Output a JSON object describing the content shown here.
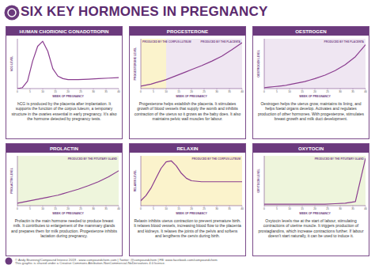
{
  "title": "SIX KEY HORMONES IN PREGNANCY",
  "footer": [
    "© Andy Brunning/Compound Interest 2019 - www.compoundchem.com | Twitter: @compoundchem | FB: www.facebook.com/compoundchem",
    "This graphic is shared under a Creative Commons Attribution-NonCommercial-NoDerivatives 4.0 licence."
  ],
  "chart_data": [
    {
      "type": "line",
      "title": "HUMAN CHORIONIC GONADOTROPIN",
      "y_label": "hCG LEVEL",
      "x_label": "WEEK OF PREGNANCY",
      "annotation": "hCG is produced by the placenta after implantation. It supports the function of the corpus luteum, a temporary structure in the ovaries essential in early pregnancy. It's also the hormone detected by pregnancy tests.",
      "x": [
        0,
        2,
        4,
        6,
        8,
        10,
        12,
        14,
        16,
        18,
        20,
        24,
        28,
        32,
        36,
        40
      ],
      "values": [
        0,
        2,
        15,
        55,
        85,
        95,
        75,
        40,
        25,
        20,
        18,
        18,
        19,
        20,
        21,
        22
      ],
      "color": "#8a3c8f",
      "xlim": [
        0,
        40
      ],
      "ylim": [
        0,
        100
      ],
      "xticks": [
        0,
        5,
        10,
        15,
        20,
        25,
        30,
        35,
        40
      ],
      "tick_labels": "x",
      "regions": []
    },
    {
      "type": "line",
      "title": "PROGESTERONE",
      "y_label": "PROGESTERONE LEVEL",
      "x_label": "WEEK OF PREGNANCY",
      "annotation": "Progesterone helps establish the placenta. It stimulates growth of blood vessels that supply the womb and inhibits contraction of the uterus so it grows as the baby does. It also maintains pelvic wall muscles for labour.",
      "x": [
        0,
        2,
        4,
        6,
        8,
        10,
        12,
        14,
        16,
        18,
        20,
        24,
        28,
        32,
        36,
        40
      ],
      "values": [
        5,
        7,
        9,
        12,
        15,
        18,
        22,
        26,
        30,
        34,
        38,
        46,
        55,
        65,
        78,
        92
      ],
      "color": "#8a3c8f",
      "xlim": [
        0,
        40
      ],
      "ylim": [
        0,
        100
      ],
      "xticks": [
        0,
        5,
        10,
        15,
        20,
        25,
        30,
        35,
        40
      ],
      "tick_labels": "x",
      "regions": [
        {
          "label": "PRODUCED BY THE CORPUS LUTEUM",
          "from": 0,
          "to": 10,
          "color": "#fbf3cc"
        },
        {
          "label": "PRODUCED BY THE PLACENTA",
          "from": 10,
          "to": 40,
          "color": "#efe6f2"
        }
      ]
    },
    {
      "type": "line",
      "title": "OESTROGEN",
      "y_label": "OESTROGEN LEVEL",
      "x_label": "WEEK OF PREGNANCY",
      "annotation": "Oestrogen helps the uterus grow, maintains its lining, and helps foetal organs develop. Activates and regulates production of other hormones. With progesterone, stimulates breast growth and milk duct development.",
      "x": [
        0,
        2,
        4,
        6,
        8,
        10,
        12,
        14,
        16,
        18,
        20,
        24,
        28,
        32,
        36,
        40
      ],
      "values": [
        2,
        3,
        4,
        5,
        6,
        8,
        10,
        12,
        14,
        17,
        20,
        27,
        36,
        48,
        64,
        88
      ],
      "color": "#8a3c8f",
      "xlim": [
        0,
        40
      ],
      "ylim": [
        0,
        100
      ],
      "xticks": [
        0,
        5,
        10,
        15,
        20,
        25,
        30,
        35,
        40
      ],
      "tick_labels": "x",
      "regions": [
        {
          "label": "PRODUCED BY THE PLACENTA",
          "from": 0,
          "to": 40,
          "color": "#efe6f2"
        }
      ]
    },
    {
      "type": "line",
      "title": "PROLACTIN",
      "y_label": "PROLACTIN LEVEL",
      "x_label": "WEEK OF PREGNANCY",
      "annotation": "Prolactin is the main hormone needed to produce breast milk. It contributes to enlargement of the mammary glands and prepares them for milk production. Progesterone inhibits lactation during pregnancy.",
      "x": [
        0,
        2,
        4,
        6,
        8,
        10,
        12,
        14,
        16,
        18,
        20,
        24,
        28,
        32,
        36,
        40
      ],
      "values": [
        5,
        7,
        9,
        11,
        13,
        15,
        17,
        19,
        21,
        24,
        27,
        33,
        40,
        48,
        58,
        70
      ],
      "color": "#8a3c8f",
      "xlim": [
        0,
        40
      ],
      "ylim": [
        0,
        100
      ],
      "xticks": [
        0,
        5,
        10,
        15,
        20,
        25,
        30,
        35,
        40
      ],
      "tick_labels": "x",
      "regions": [
        {
          "label": "PRODUCED BY THE PITUITARY GLAND",
          "from": 0,
          "to": 40,
          "color": "#eef5dc"
        }
      ]
    },
    {
      "type": "line",
      "title": "RELAXIN",
      "y_label": "RELAXIN LEVEL",
      "x_label": "WEEK OF PREGNANCY",
      "annotation": "Relaxin inhibits uterus contraction to prevent premature birth. It relaxes blood vessels, increasing blood flow to the placenta and kidneys. It relaxes the joints of the pelvis and softens and lengthens the cervix during birth.",
      "x": [
        0,
        2,
        4,
        6,
        8,
        10,
        12,
        14,
        16,
        18,
        20,
        24,
        28,
        32,
        36,
        40
      ],
      "values": [
        10,
        20,
        35,
        55,
        75,
        88,
        90,
        80,
        65,
        55,
        50,
        48,
        48,
        48,
        48,
        48
      ],
      "color": "#8a3c8f",
      "xlim": [
        0,
        40
      ],
      "ylim": [
        0,
        100
      ],
      "xticks": [
        0,
        5,
        10,
        15,
        20,
        25,
        30,
        35,
        40
      ],
      "tick_labels": "x",
      "regions": [
        {
          "label": "PRODUCED BY THE CORPUS LUTEUM",
          "from": 0,
          "to": 40,
          "color": "#fbf3cc"
        }
      ]
    },
    {
      "type": "line",
      "title": "OXYTOCIN",
      "y_label": "OXYTOCIN LEVEL",
      "x_label": "WEEK OF PREGNANCY",
      "annotation": "Oxytocin levels rise at the start of labour, stimulating contractions of uterine muscle. It triggers production of prostaglandins, which increase contractions further. If labour doesn't start naturally, it can be used to induce it.",
      "x": [
        0,
        2,
        4,
        6,
        8,
        10,
        12,
        14,
        16,
        18,
        20,
        24,
        28,
        32,
        36,
        40
      ],
      "values": [
        3,
        3,
        3,
        3,
        3,
        3,
        3,
        3,
        3,
        3,
        3,
        3,
        4,
        5,
        8,
        95
      ],
      "color": "#8a3c8f",
      "xlim": [
        0,
        40
      ],
      "ylim": [
        0,
        100
      ],
      "xticks": [
        0,
        5,
        10,
        15,
        20,
        25,
        30,
        35,
        40
      ],
      "tick_labels": "x",
      "regions": [
        {
          "label": "PRODUCED BY THE PITUITARY GLAND",
          "from": 0,
          "to": 40,
          "color": "#eef5dc"
        }
      ]
    }
  ]
}
